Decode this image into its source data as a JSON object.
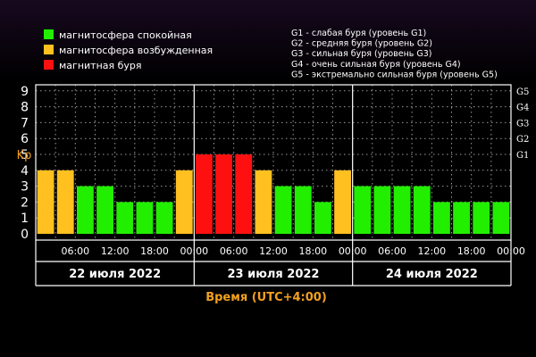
{
  "colors": {
    "quiet": "#22ee00",
    "active": "#ffc020",
    "storm": "#ff1010",
    "background": "#000000",
    "axis": "#ffffff",
    "label_accent": "#f0a020"
  },
  "legend": {
    "items": [
      {
        "label": "магнитосфера спокойная",
        "color": "#22ee00"
      },
      {
        "label": "магнитосфера возбужденная",
        "color": "#ffc020"
      },
      {
        "label": "магнитная буря",
        "color": "#ff1010"
      }
    ]
  },
  "storm_levels": {
    "items": [
      "G1 - слабая буря (уровень G1)",
      "G2 - средняя буря (уровень G2)",
      "G3 - сильная буря (уровень G3)",
      "G4 - очень сильная буря (уровень G4)",
      "G5 - экстремально сильная буря (уровень G5)"
    ]
  },
  "chart_data": {
    "type": "bar",
    "ylabel": "Kp",
    "xlabel": "Время (UTC+4:00)",
    "ylim": [
      0,
      9
    ],
    "y_ticks": [
      "0",
      "1",
      "2",
      "3",
      "4",
      "5",
      "6",
      "7",
      "8",
      "9"
    ],
    "right_ticks": [
      {
        "label": "G1",
        "kp": 5
      },
      {
        "label": "G2",
        "kp": 6
      },
      {
        "label": "G3",
        "kp": 7
      },
      {
        "label": "G4",
        "kp": 8
      },
      {
        "label": "G5",
        "kp": 9
      }
    ],
    "x_tick_labels": [
      "06:00",
      "12:00",
      "18:00",
      "00:00",
      "06:00",
      "12:00",
      "18:00",
      "00:00",
      "06:00",
      "12:00",
      "18:00",
      "00:00"
    ],
    "days": [
      "22 июля 2022",
      "23 июля 2022",
      "24 июля 2022"
    ],
    "bars_per_day": 8,
    "grid": true,
    "values": [
      4,
      4,
      3,
      3,
      2,
      2,
      2,
      4,
      5,
      5,
      5,
      4,
      3,
      3,
      2,
      4,
      3,
      3,
      3,
      3,
      2,
      2,
      2,
      2
    ],
    "levels": [
      "active",
      "active",
      "quiet",
      "quiet",
      "quiet",
      "quiet",
      "quiet",
      "active",
      "storm",
      "storm",
      "storm",
      "active",
      "quiet",
      "quiet",
      "quiet",
      "active",
      "quiet",
      "quiet",
      "quiet",
      "quiet",
      "quiet",
      "quiet",
      "quiet",
      "quiet"
    ]
  }
}
